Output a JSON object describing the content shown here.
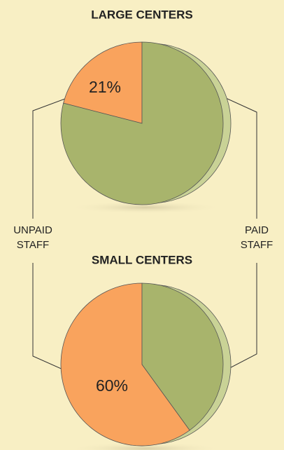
{
  "chart_data": [
    {
      "type": "pie",
      "title": "LARGE CENTERS",
      "values": [
        21,
        79
      ],
      "value_labels": [
        "21%",
        null
      ],
      "colors": [
        "#f9a35d",
        "#a8b46c"
      ]
    },
    {
      "type": "pie",
      "title": "SMALL CENTERS",
      "values": [
        60,
        40
      ],
      "value_labels": [
        "60%",
        null
      ],
      "colors": [
        "#f9a35d",
        "#a8b46c"
      ]
    }
  ],
  "categories": [
    "UNPAID STAFF",
    "PAID STAFF"
  ]
}
